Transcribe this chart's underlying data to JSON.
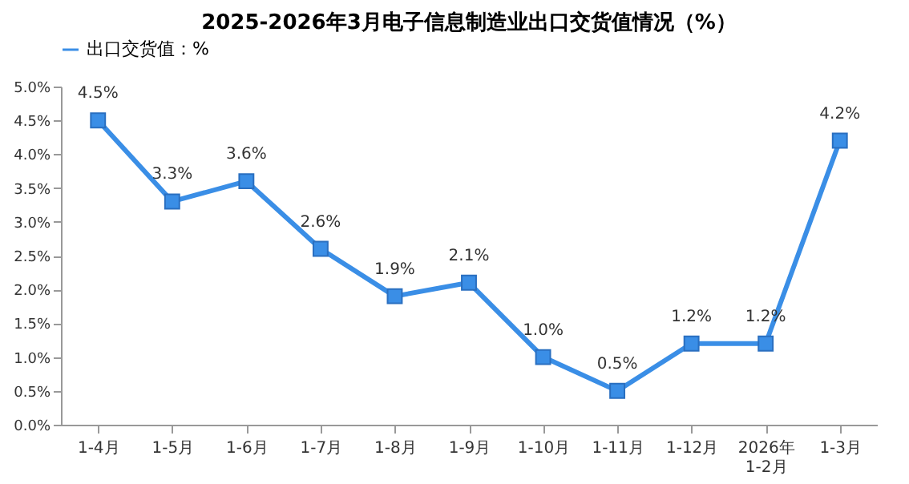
{
  "chart_data": {
    "type": "line",
    "title": "2025-2026年3月电子信息制造业出口交货值情况（%）",
    "categories": [
      "1-4月",
      "1-5月",
      "1-6月",
      "1-7月",
      "1-8月",
      "1-9月",
      "1-10月",
      "1-11月",
      "1-12月",
      "2026年\n1-2月",
      "1-3月"
    ],
    "series": [
      {
        "name": "出口交货值：%",
        "color": "#3a8ee6",
        "values": [
          4.5,
          3.3,
          3.6,
          2.6,
          1.9,
          2.1,
          1.0,
          0.5,
          1.2,
          1.2,
          4.2
        ],
        "value_labels": [
          "4.5%",
          "3.3%",
          "3.6%",
          "2.6%",
          "1.9%",
          "2.1%",
          "1.0%",
          "0.5%",
          "1.2%",
          "1.2%",
          "4.2%"
        ]
      }
    ],
    "ylim": [
      0,
      5
    ],
    "yticks": [
      {
        "value": 0,
        "label": "0.0%"
      },
      {
        "value": 0.5,
        "label": "0.5%"
      },
      {
        "value": 1,
        "label": "1.0%"
      },
      {
        "value": 1.5,
        "label": "1.5%"
      },
      {
        "value": 2,
        "label": "2.0%"
      },
      {
        "value": 2.5,
        "label": "2.5%"
      },
      {
        "value": 3,
        "label": "3.0%"
      },
      {
        "value": 3.5,
        "label": "3.5%"
      },
      {
        "value": 4,
        "label": "4.0%"
      },
      {
        "value": 4.5,
        "label": "4.5%"
      },
      {
        "value": 5,
        "label": "5.0%"
      }
    ],
    "grid": false,
    "legend": "top",
    "marker": "square",
    "line_style": "solid"
  }
}
